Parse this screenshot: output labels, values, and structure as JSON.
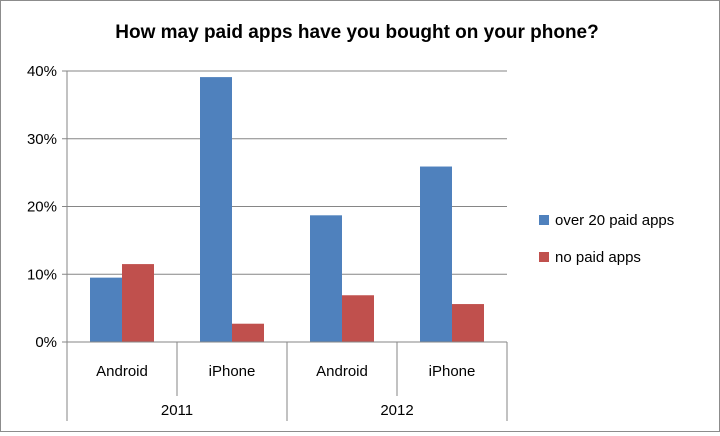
{
  "chart_data": {
    "type": "bar",
    "title": "How may paid apps have you bought on your phone?",
    "xlabel": "",
    "ylabel": "",
    "categories": [
      "Android",
      "iPhone",
      "Android",
      "iPhone"
    ],
    "category_groups": [
      {
        "label": "2011",
        "categories": [
          "Android",
          "iPhone"
        ]
      },
      {
        "label": "2012",
        "categories": [
          "Android",
          "iPhone"
        ]
      }
    ],
    "series": [
      {
        "name": "over 20 paid apps",
        "color": "#4f81bd",
        "values": [
          9.5,
          39.1,
          18.7,
          25.9
        ]
      },
      {
        "name": "no paid apps",
        "color": "#c0504d",
        "values": [
          11.5,
          2.7,
          6.9,
          5.6
        ]
      }
    ],
    "ylim": [
      0,
      40
    ],
    "yticks": [
      0,
      10,
      20,
      30,
      40
    ],
    "ytick_labels": [
      "0%",
      "10%",
      "20%",
      "30%",
      "40%"
    ],
    "grid": true,
    "legend_position": "right"
  }
}
